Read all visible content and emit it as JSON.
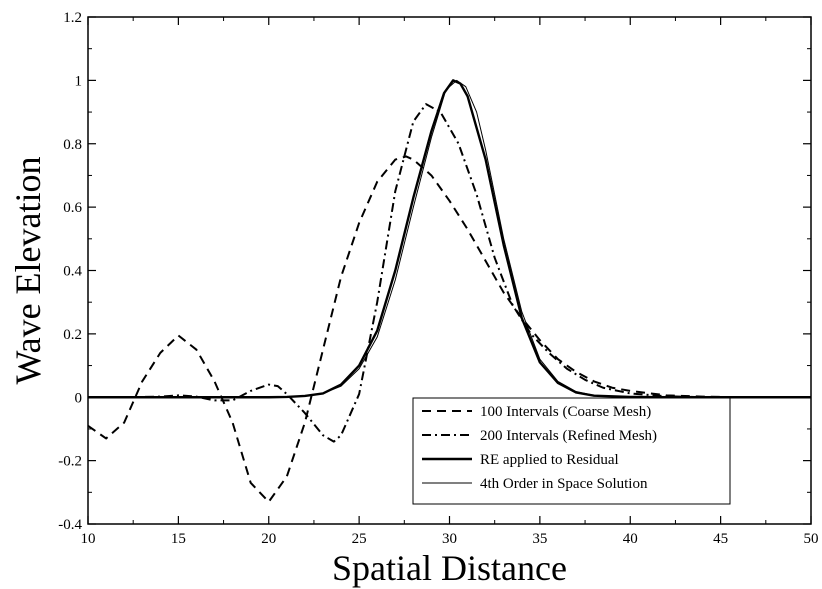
{
  "chart_data": {
    "type": "line",
    "title": "",
    "xlabel": "Spatial Distance",
    "ylabel": "Wave Elevation",
    "xlim": [
      10,
      50
    ],
    "ylim": [
      -0.4,
      1.2
    ],
    "xticks": [
      "10",
      "15",
      "20",
      "25",
      "30",
      "35",
      "40",
      "45",
      "50"
    ],
    "yticks": [
      "-0.4",
      "-0.2",
      "0",
      "0.2",
      "0.4",
      "0.6",
      "0.8",
      "1",
      "1.2"
    ],
    "xtick_values": [
      10,
      15,
      20,
      25,
      30,
      35,
      40,
      45,
      50
    ],
    "ytick_values": [
      -0.4,
      -0.2,
      0,
      0.2,
      0.4,
      0.6,
      0.8,
      1.0,
      1.2
    ],
    "grid": false,
    "legend_position": "bottom-right",
    "series": [
      {
        "name": "100 Intervals (Coarse Mesh)",
        "style": "dashed",
        "color": "#000000",
        "points": [
          [
            10,
            -0.09
          ],
          [
            11,
            -0.13
          ],
          [
            12,
            -0.08
          ],
          [
            13,
            0.05
          ],
          [
            14,
            0.14
          ],
          [
            15,
            0.195
          ],
          [
            16,
            0.15
          ],
          [
            17,
            0.05
          ],
          [
            18,
            -0.08
          ],
          [
            19,
            -0.27
          ],
          [
            20,
            -0.33
          ],
          [
            21,
            -0.25
          ],
          [
            22,
            -0.08
          ],
          [
            23,
            0.15
          ],
          [
            24,
            0.38
          ],
          [
            25,
            0.55
          ],
          [
            26,
            0.68
          ],
          [
            27,
            0.75
          ],
          [
            27.6,
            0.76
          ],
          [
            28,
            0.75
          ],
          [
            29,
            0.7
          ],
          [
            30,
            0.62
          ],
          [
            31,
            0.53
          ],
          [
            32,
            0.43
          ],
          [
            33,
            0.33
          ],
          [
            34,
            0.25
          ],
          [
            35,
            0.18
          ],
          [
            36,
            0.12
          ],
          [
            37,
            0.08
          ],
          [
            38,
            0.05
          ],
          [
            39,
            0.03
          ],
          [
            40,
            0.02
          ],
          [
            42,
            0.006
          ],
          [
            44,
            0.002
          ],
          [
            46,
            0
          ],
          [
            50,
            0
          ]
        ]
      },
      {
        "name": "200 Intervals (Refined Mesh)",
        "style": "dashdot",
        "color": "#000000",
        "points": [
          [
            10,
            0
          ],
          [
            12,
            0
          ],
          [
            14,
            0.002
          ],
          [
            15,
            0.006
          ],
          [
            16,
            0.002
          ],
          [
            17,
            -0.01
          ],
          [
            18,
            -0.01
          ],
          [
            19,
            0.02
          ],
          [
            20,
            0.04
          ],
          [
            20.5,
            0.035
          ],
          [
            21,
            0.01
          ],
          [
            22,
            -0.05
          ],
          [
            23,
            -0.12
          ],
          [
            23.6,
            -0.14
          ],
          [
            24,
            -0.12
          ],
          [
            25,
            0.01
          ],
          [
            26,
            0.3
          ],
          [
            27,
            0.65
          ],
          [
            28,
            0.87
          ],
          [
            28.7,
            0.925
          ],
          [
            29.5,
            0.9
          ],
          [
            30.5,
            0.8
          ],
          [
            31.5,
            0.64
          ],
          [
            32.5,
            0.44
          ],
          [
            33.5,
            0.29
          ],
          [
            34.5,
            0.2
          ],
          [
            35.5,
            0.14
          ],
          [
            36.5,
            0.09
          ],
          [
            37.5,
            0.055
          ],
          [
            38.5,
            0.03
          ],
          [
            40,
            0.012
          ],
          [
            42,
            0.003
          ],
          [
            44,
            0
          ],
          [
            50,
            0
          ]
        ]
      },
      {
        "name": "RE applied to Residual",
        "style": "solid-thick",
        "color": "#000000",
        "points": [
          [
            10,
            0
          ],
          [
            20,
            0
          ],
          [
            21,
            0.001
          ],
          [
            22,
            0.004
          ],
          [
            23,
            0.012
          ],
          [
            24,
            0.04
          ],
          [
            25,
            0.1
          ],
          [
            26,
            0.21
          ],
          [
            27,
            0.4
          ],
          [
            28,
            0.63
          ],
          [
            29,
            0.84
          ],
          [
            29.7,
            0.96
          ],
          [
            30.2,
            1.0
          ],
          [
            30.6,
            0.99
          ],
          [
            31,
            0.95
          ],
          [
            32,
            0.75
          ],
          [
            33,
            0.48
          ],
          [
            34,
            0.25
          ],
          [
            35,
            0.11
          ],
          [
            36,
            0.045
          ],
          [
            37,
            0.015
          ],
          [
            38,
            0.005
          ],
          [
            40,
            0.001
          ],
          [
            42,
            0
          ],
          [
            50,
            0
          ]
        ]
      },
      {
        "name": "4th Order in Space Solution",
        "style": "solid-thin",
        "color": "#000000",
        "points": [
          [
            10,
            0
          ],
          [
            20,
            0
          ],
          [
            21,
            0.001
          ],
          [
            22,
            0.004
          ],
          [
            23,
            0.012
          ],
          [
            24,
            0.035
          ],
          [
            25,
            0.09
          ],
          [
            26,
            0.19
          ],
          [
            27,
            0.37
          ],
          [
            28,
            0.6
          ],
          [
            29,
            0.82
          ],
          [
            29.8,
            0.97
          ],
          [
            30.4,
            1.0
          ],
          [
            30.9,
            0.98
          ],
          [
            31.5,
            0.9
          ],
          [
            32,
            0.78
          ],
          [
            33,
            0.5
          ],
          [
            34,
            0.27
          ],
          [
            35,
            0.12
          ],
          [
            36,
            0.05
          ],
          [
            37,
            0.018
          ],
          [
            38,
            0.006
          ],
          [
            40,
            0.001
          ],
          [
            42,
            0
          ],
          [
            50,
            0
          ]
        ]
      }
    ]
  }
}
